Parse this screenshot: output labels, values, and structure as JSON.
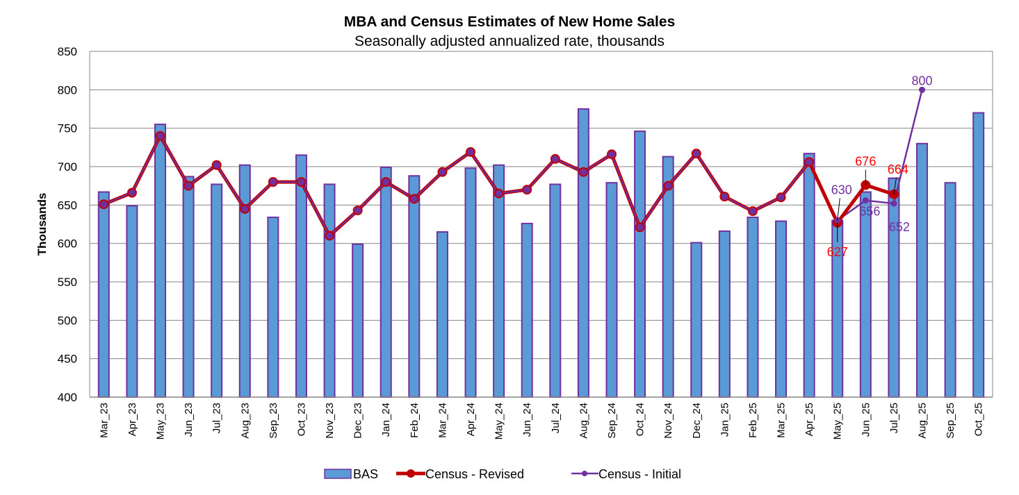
{
  "chart_data": {
    "type": "bar",
    "title": "MBA and Census Estimates of New Home Sales",
    "subtitle": "Seasonally adjusted annualized rate, thousands",
    "xlabel": "",
    "ylabel": "Thousands",
    "ylim": [
      400,
      850
    ],
    "yticks": [
      400,
      450,
      500,
      550,
      600,
      650,
      700,
      750,
      800,
      850
    ],
    "grid": true,
    "legend_position": "bottom",
    "categories": [
      "Mar_23",
      "Apr_23",
      "May_23",
      "Jun_23",
      "Jul_23",
      "Aug_23",
      "Sep_23",
      "Oct_23",
      "Nov_23",
      "Dec_23",
      "Jan_24",
      "Feb_24",
      "Mar_24",
      "Apr_24",
      "May_24",
      "Jun_24",
      "Jul_24",
      "Aug_24",
      "Sep_24",
      "Oct_24",
      "Nov_24",
      "Dec_24",
      "Jan_25",
      "Feb_25",
      "Mar_25",
      "Apr_25",
      "May_25",
      "Jun_25",
      "Jul_25",
      "Aug_25",
      "Sep_25",
      "Oct_25"
    ],
    "series": [
      {
        "name": "BAS",
        "type": "bar",
        "color": "#5b9bd5",
        "edge_color": "#7030a0",
        "values": [
          667,
          649,
          755,
          687,
          677,
          702,
          634,
          715,
          677,
          599,
          699,
          688,
          615,
          698,
          702,
          626,
          677,
          775,
          679,
          746,
          713,
          601,
          616,
          634,
          629,
          717,
          630,
          667,
          685,
          730,
          679,
          770
        ]
      },
      {
        "name": "Census - Revised",
        "type": "line",
        "color": "#c00000",
        "marker_color": "#7030a0",
        "values": [
          651,
          666,
          740,
          675,
          702,
          645,
          680,
          680,
          610,
          643,
          680,
          658,
          693,
          719,
          665,
          670,
          710,
          693,
          716,
          621,
          675,
          717,
          661,
          642,
          660,
          706,
          627,
          676,
          664,
          null,
          null,
          null
        ]
      },
      {
        "name": "Census - Initial",
        "type": "line",
        "color": "#7030a0",
        "values": [
          651,
          666,
          740,
          675,
          702,
          645,
          680,
          680,
          610,
          643,
          680,
          658,
          693,
          719,
          665,
          670,
          710,
          693,
          716,
          621,
          675,
          717,
          661,
          642,
          660,
          706,
          630,
          656,
          652,
          800,
          null,
          null
        ]
      }
    ],
    "annotations": [
      {
        "series": "Census - Revised",
        "category": "May_25",
        "text": "627",
        "color": "#ff0000"
      },
      {
        "series": "Census - Revised",
        "category": "Jun_25",
        "text": "676",
        "color": "#ff0000"
      },
      {
        "series": "Census - Revised",
        "category": "Jul_25",
        "text": "664",
        "color": "#ff0000"
      },
      {
        "series": "Census - Initial",
        "category": "May_25",
        "text": "630",
        "color": "#7030a0"
      },
      {
        "series": "Census - Initial",
        "category": "Jun_25",
        "text": "656",
        "color": "#7030a0"
      },
      {
        "series": "Census - Initial",
        "category": "Jul_25",
        "text": "652",
        "color": "#7030a0"
      },
      {
        "series": "Census - Initial",
        "category": "Aug_25",
        "text": "800",
        "color": "#7030a0"
      }
    ]
  }
}
